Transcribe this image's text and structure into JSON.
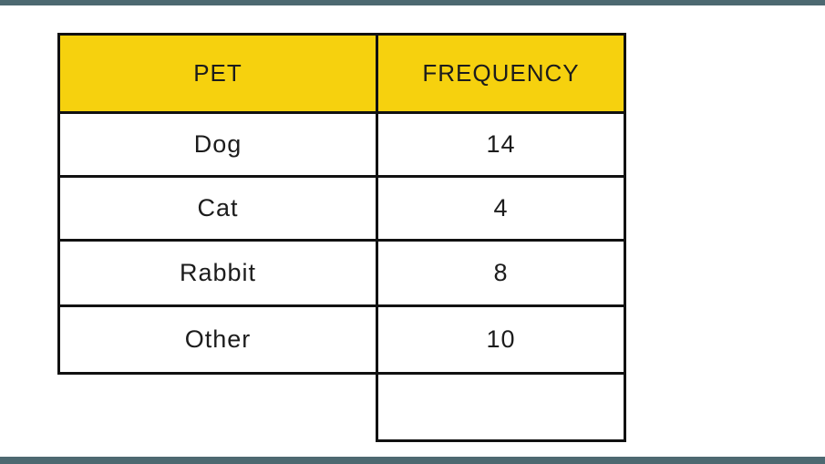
{
  "page": {
    "background_color": "#ffffff",
    "accent_bar_color": "#4d6971"
  },
  "table": {
    "header": {
      "pet_label": "PET",
      "frequency_label": "FREQUENCY",
      "background_color": "#f6d10e",
      "border_color": "#111111"
    },
    "rows": [
      {
        "pet": "Dog",
        "frequency": "14"
      },
      {
        "pet": "Cat",
        "frequency": "4"
      },
      {
        "pet": "Rabbit",
        "frequency": "8"
      },
      {
        "pet": "Other",
        "frequency": "10"
      }
    ],
    "extra_empty_frequency_cell": true
  },
  "chart_data": {
    "type": "table",
    "columns": [
      "PET",
      "FREQUENCY"
    ],
    "rows": [
      [
        "Dog",
        14
      ],
      [
        "Cat",
        4
      ],
      [
        "Rabbit",
        8
      ],
      [
        "Other",
        10
      ]
    ],
    "legend_position": "none",
    "grid": "table-borders"
  }
}
